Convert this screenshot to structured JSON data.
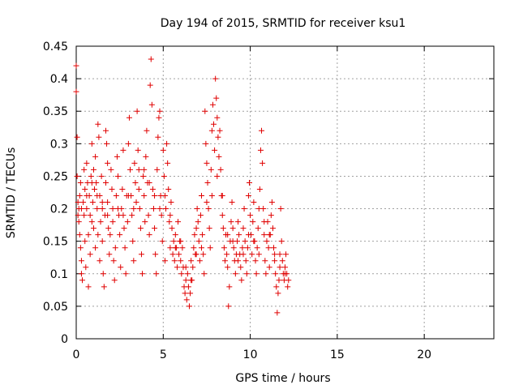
{
  "chart_data": {
    "type": "scatter",
    "title": "Day 194 of 2015, SRMTID for receiver ksu1",
    "xlabel": "GPS time / hours",
    "ylabel": "SRMTID / TECUs",
    "xlim": [
      0,
      24
    ],
    "ylim": [
      0,
      0.45
    ],
    "xticks": [
      0,
      5,
      10,
      15,
      20
    ],
    "yticks": [
      0,
      0.05,
      0.1,
      0.15,
      0.2,
      0.25,
      0.3,
      0.35,
      0.4,
      0.45
    ],
    "xtick_labels": [
      "0",
      "5",
      "10",
      "15",
      "20"
    ],
    "ytick_labels": [
      "0",
      "0.05",
      "0.1",
      "0.15",
      "0.2",
      "0.25",
      "0.3",
      "0.35",
      "0.4",
      "0.45"
    ],
    "grid": true,
    "marker": "+",
    "color": "#e00000",
    "series": [
      {
        "name": "SRMTID",
        "points": [
          [
            0.0,
            0.42
          ],
          [
            0.0,
            0.38
          ],
          [
            0.05,
            0.31
          ],
          [
            0.05,
            0.25
          ],
          [
            0.1,
            0.21
          ],
          [
            0.1,
            0.19
          ],
          [
            0.15,
            0.2
          ],
          [
            0.15,
            0.18
          ],
          [
            0.2,
            0.22
          ],
          [
            0.2,
            0.16
          ],
          [
            0.25,
            0.24
          ],
          [
            0.25,
            0.14
          ],
          [
            0.3,
            0.12
          ],
          [
            0.3,
            0.1
          ],
          [
            0.35,
            0.09
          ],
          [
            0.4,
            0.21
          ],
          [
            0.45,
            0.26
          ],
          [
            0.45,
            0.19
          ],
          [
            0.5,
            0.23
          ],
          [
            0.5,
            0.15
          ],
          [
            0.55,
            0.11
          ],
          [
            0.6,
            0.2
          ],
          [
            0.6,
            0.27
          ],
          [
            0.65,
            0.24
          ],
          [
            0.7,
            0.08
          ],
          [
            0.7,
            0.16
          ],
          [
            0.75,
            0.22
          ],
          [
            0.8,
            0.19
          ],
          [
            0.8,
            0.13
          ],
          [
            0.85,
            0.25
          ],
          [
            0.9,
            0.3
          ],
          [
            0.9,
            0.18
          ],
          [
            0.95,
            0.21
          ],
          [
            1.0,
            0.26
          ],
          [
            1.0,
            0.17
          ],
          [
            1.05,
            0.23
          ],
          [
            1.1,
            0.28
          ],
          [
            1.1,
            0.14
          ],
          [
            1.15,
            0.24
          ],
          [
            1.2,
            0.2
          ],
          [
            1.25,
            0.33
          ],
          [
            1.25,
            0.16
          ],
          [
            1.3,
            0.31
          ],
          [
            1.35,
            0.22
          ],
          [
            1.35,
            0.12
          ],
          [
            1.4,
            0.18
          ],
          [
            1.45,
            0.25
          ],
          [
            1.5,
            0.2
          ],
          [
            1.5,
            0.15
          ],
          [
            1.55,
            0.1
          ],
          [
            1.6,
            0.08
          ],
          [
            1.65,
            0.19
          ],
          [
            1.7,
            0.32
          ],
          [
            1.7,
            0.24
          ],
          [
            1.75,
            0.3
          ],
          [
            1.8,
            0.27
          ],
          [
            1.8,
            0.21
          ],
          [
            1.85,
            0.17
          ],
          [
            1.9,
            0.13
          ],
          [
            1.95,
            0.16
          ],
          [
            2.0,
            0.26
          ],
          [
            2.05,
            0.23
          ],
          [
            2.1,
            0.2
          ],
          [
            2.15,
            0.12
          ],
          [
            2.2,
            0.09
          ],
          [
            2.25,
            0.14
          ],
          [
            2.3,
            0.22
          ],
          [
            2.35,
            0.28
          ],
          [
            2.4,
            0.25
          ],
          [
            2.45,
            0.19
          ],
          [
            2.5,
            0.16
          ],
          [
            2.55,
            0.11
          ],
          [
            2.6,
            0.2
          ],
          [
            2.65,
            0.23
          ],
          [
            2.7,
            0.29
          ],
          [
            2.75,
            0.17
          ],
          [
            2.8,
            0.14
          ],
          [
            2.85,
            0.1
          ],
          [
            2.9,
            0.22
          ],
          [
            2.95,
            0.18
          ],
          [
            3.0,
            0.3
          ],
          [
            3.05,
            0.34
          ],
          [
            3.1,
            0.26
          ],
          [
            3.15,
            0.22
          ],
          [
            3.2,
            0.19
          ],
          [
            3.25,
            0.15
          ],
          [
            3.3,
            0.12
          ],
          [
            3.35,
            0.27
          ],
          [
            3.4,
            0.24
          ],
          [
            3.45,
            0.21
          ],
          [
            3.5,
            0.35
          ],
          [
            3.55,
            0.29
          ],
          [
            3.6,
            0.26
          ],
          [
            3.65,
            0.2
          ],
          [
            3.7,
            0.17
          ],
          [
            3.75,
            0.13
          ],
          [
            3.8,
            0.1
          ],
          [
            3.85,
            0.25
          ],
          [
            3.9,
            0.22
          ],
          [
            3.95,
            0.18
          ],
          [
            4.0,
            0.28
          ],
          [
            4.05,
            0.32
          ],
          [
            4.1,
            0.24
          ],
          [
            4.15,
            0.19
          ],
          [
            4.2,
            0.16
          ],
          [
            4.25,
            0.39
          ],
          [
            4.3,
            0.43
          ],
          [
            4.35,
            0.36
          ],
          [
            4.4,
            0.23
          ],
          [
            4.45,
            0.2
          ],
          [
            4.5,
            0.17
          ],
          [
            4.55,
            0.13
          ],
          [
            4.6,
            0.1
          ],
          [
            4.65,
            0.26
          ],
          [
            4.7,
            0.31
          ],
          [
            4.75,
            0.34
          ],
          [
            4.8,
            0.35
          ],
          [
            4.85,
            0.22
          ],
          [
            4.9,
            0.19
          ],
          [
            4.95,
            0.15
          ],
          [
            5.0,
            0.29
          ],
          [
            5.05,
            0.25
          ],
          [
            5.1,
            0.12
          ],
          [
            5.15,
            0.2
          ],
          [
            5.2,
            0.3
          ],
          [
            5.25,
            0.27
          ],
          [
            5.3,
            0.23
          ],
          [
            5.35,
            0.18
          ],
          [
            5.4,
            0.14
          ],
          [
            5.45,
            0.21
          ],
          [
            5.5,
            0.17
          ],
          [
            5.55,
            0.13
          ],
          [
            5.6,
            0.15
          ],
          [
            5.65,
            0.12
          ],
          [
            5.7,
            0.16
          ],
          [
            5.75,
            0.14
          ],
          [
            5.8,
            0.11
          ],
          [
            5.85,
            0.18
          ],
          [
            5.9,
            0.13
          ],
          [
            5.95,
            0.15
          ],
          [
            6.0,
            0.12
          ],
          [
            6.05,
            0.1
          ],
          [
            6.1,
            0.14
          ],
          [
            6.15,
            0.11
          ],
          [
            6.2,
            0.08
          ],
          [
            6.25,
            0.07
          ],
          [
            6.3,
            0.09
          ],
          [
            6.35,
            0.06
          ],
          [
            6.4,
            0.1
          ],
          [
            6.45,
            0.08
          ],
          [
            6.5,
            0.05
          ],
          [
            6.55,
            0.07
          ],
          [
            6.6,
            0.12
          ],
          [
            6.65,
            0.09
          ],
          [
            6.7,
            0.11
          ],
          [
            6.75,
            0.14
          ],
          [
            6.8,
            0.16
          ],
          [
            6.85,
            0.13
          ],
          [
            6.9,
            0.17
          ],
          [
            6.95,
            0.2
          ],
          [
            7.0,
            0.18
          ],
          [
            7.05,
            0.15
          ],
          [
            7.1,
            0.12
          ],
          [
            7.15,
            0.19
          ],
          [
            7.2,
            0.22
          ],
          [
            7.25,
            0.16
          ],
          [
            7.3,
            0.13
          ],
          [
            7.35,
            0.1
          ],
          [
            7.4,
            0.35
          ],
          [
            7.45,
            0.3
          ],
          [
            7.5,
            0.27
          ],
          [
            7.55,
            0.24
          ],
          [
            7.6,
            0.2
          ],
          [
            7.65,
            0.17
          ],
          [
            7.7,
            0.14
          ],
          [
            7.75,
            0.26
          ],
          [
            7.8,
            0.32
          ],
          [
            7.85,
            0.36
          ],
          [
            7.9,
            0.33
          ],
          [
            7.95,
            0.29
          ],
          [
            8.0,
            0.4
          ],
          [
            8.05,
            0.37
          ],
          [
            8.1,
            0.34
          ],
          [
            8.15,
            0.31
          ],
          [
            8.2,
            0.28
          ],
          [
            8.25,
            0.32
          ],
          [
            8.3,
            0.26
          ],
          [
            8.35,
            0.22
          ],
          [
            8.4,
            0.19
          ],
          [
            8.45,
            0.17
          ],
          [
            8.5,
            0.14
          ],
          [
            8.55,
            0.12
          ],
          [
            8.6,
            0.16
          ],
          [
            8.65,
            0.13
          ],
          [
            8.7,
            0.11
          ],
          [
            8.75,
            0.05
          ],
          [
            8.8,
            0.08
          ],
          [
            8.85,
            0.15
          ],
          [
            8.9,
            0.18
          ],
          [
            8.95,
            0.21
          ],
          [
            9.0,
            0.17
          ],
          [
            9.05,
            0.14
          ],
          [
            9.1,
            0.12
          ],
          [
            9.15,
            0.1
          ],
          [
            9.2,
            0.13
          ],
          [
            9.25,
            0.15
          ],
          [
            9.3,
            0.18
          ],
          [
            9.35,
            0.16
          ],
          [
            9.4,
            0.13
          ],
          [
            9.45,
            0.11
          ],
          [
            9.5,
            0.09
          ],
          [
            9.55,
            0.14
          ],
          [
            9.6,
            0.17
          ],
          [
            9.65,
            0.2
          ],
          [
            9.7,
            0.15
          ],
          [
            9.75,
            0.12
          ],
          [
            9.8,
            0.1
          ],
          [
            9.85,
            0.14
          ],
          [
            9.9,
            0.22
          ],
          [
            9.95,
            0.24
          ],
          [
            10.0,
            0.19
          ],
          [
            10.05,
            0.16
          ],
          [
            10.1,
            0.13
          ],
          [
            10.15,
            0.18
          ],
          [
            10.2,
            0.21
          ],
          [
            10.25,
            0.15
          ],
          [
            10.3,
            0.12
          ],
          [
            10.35,
            0.1
          ],
          [
            10.4,
            0.14
          ],
          [
            10.45,
            0.17
          ],
          [
            10.5,
            0.2
          ],
          [
            10.55,
            0.23
          ],
          [
            10.6,
            0.29
          ],
          [
            10.65,
            0.32
          ],
          [
            10.7,
            0.27
          ],
          [
            10.75,
            0.2
          ],
          [
            10.8,
            0.16
          ],
          [
            10.85,
            0.12
          ],
          [
            10.9,
            0.1
          ],
          [
            10.95,
            0.15
          ],
          [
            11.0,
            0.18
          ],
          [
            11.05,
            0.14
          ],
          [
            11.1,
            0.11
          ],
          [
            11.15,
            0.16
          ],
          [
            11.2,
            0.19
          ],
          [
            11.25,
            0.21
          ],
          [
            11.3,
            0.17
          ],
          [
            11.35,
            0.14
          ],
          [
            11.4,
            0.12
          ],
          [
            11.45,
            0.1
          ],
          [
            11.5,
            0.08
          ],
          [
            11.55,
            0.04
          ],
          [
            11.6,
            0.07
          ],
          [
            11.65,
            0.09
          ],
          [
            11.7,
            0.13
          ],
          [
            11.75,
            0.2
          ],
          [
            11.8,
            0.15
          ],
          [
            11.85,
            0.12
          ],
          [
            11.9,
            0.1
          ],
          [
            11.95,
            0.09
          ],
          [
            12.0,
            0.11
          ],
          [
            12.05,
            0.13
          ],
          [
            12.1,
            0.1
          ],
          [
            12.15,
            0.08
          ],
          [
            12.2,
            0.09
          ],
          [
            0.3,
            0.2
          ],
          [
            0.6,
            0.22
          ],
          [
            0.9,
            0.24
          ],
          [
            1.2,
            0.22
          ],
          [
            1.5,
            0.21
          ],
          [
            1.8,
            0.19
          ],
          [
            2.1,
            0.18
          ],
          [
            2.4,
            0.2
          ],
          [
            2.7,
            0.19
          ],
          [
            3.0,
            0.22
          ],
          [
            3.3,
            0.2
          ],
          [
            3.6,
            0.23
          ],
          [
            3.9,
            0.26
          ],
          [
            4.2,
            0.24
          ],
          [
            4.5,
            0.22
          ],
          [
            4.8,
            0.2
          ],
          [
            5.1,
            0.22
          ],
          [
            5.4,
            0.19
          ],
          [
            5.7,
            0.14
          ],
          [
            6.0,
            0.15
          ],
          [
            6.3,
            0.11
          ],
          [
            6.6,
            0.09
          ],
          [
            6.9,
            0.13
          ],
          [
            7.2,
            0.14
          ],
          [
            7.5,
            0.21
          ],
          [
            7.8,
            0.22
          ],
          [
            8.1,
            0.25
          ],
          [
            8.4,
            0.22
          ],
          [
            8.7,
            0.16
          ],
          [
            9.0,
            0.15
          ],
          [
            9.3,
            0.12
          ],
          [
            9.6,
            0.13
          ],
          [
            9.9,
            0.16
          ],
          [
            10.2,
            0.15
          ],
          [
            10.5,
            0.13
          ],
          [
            10.8,
            0.18
          ],
          [
            11.1,
            0.16
          ],
          [
            11.4,
            0.13
          ],
          [
            11.7,
            0.11
          ],
          [
            12.0,
            0.1
          ]
        ]
      }
    ]
  }
}
